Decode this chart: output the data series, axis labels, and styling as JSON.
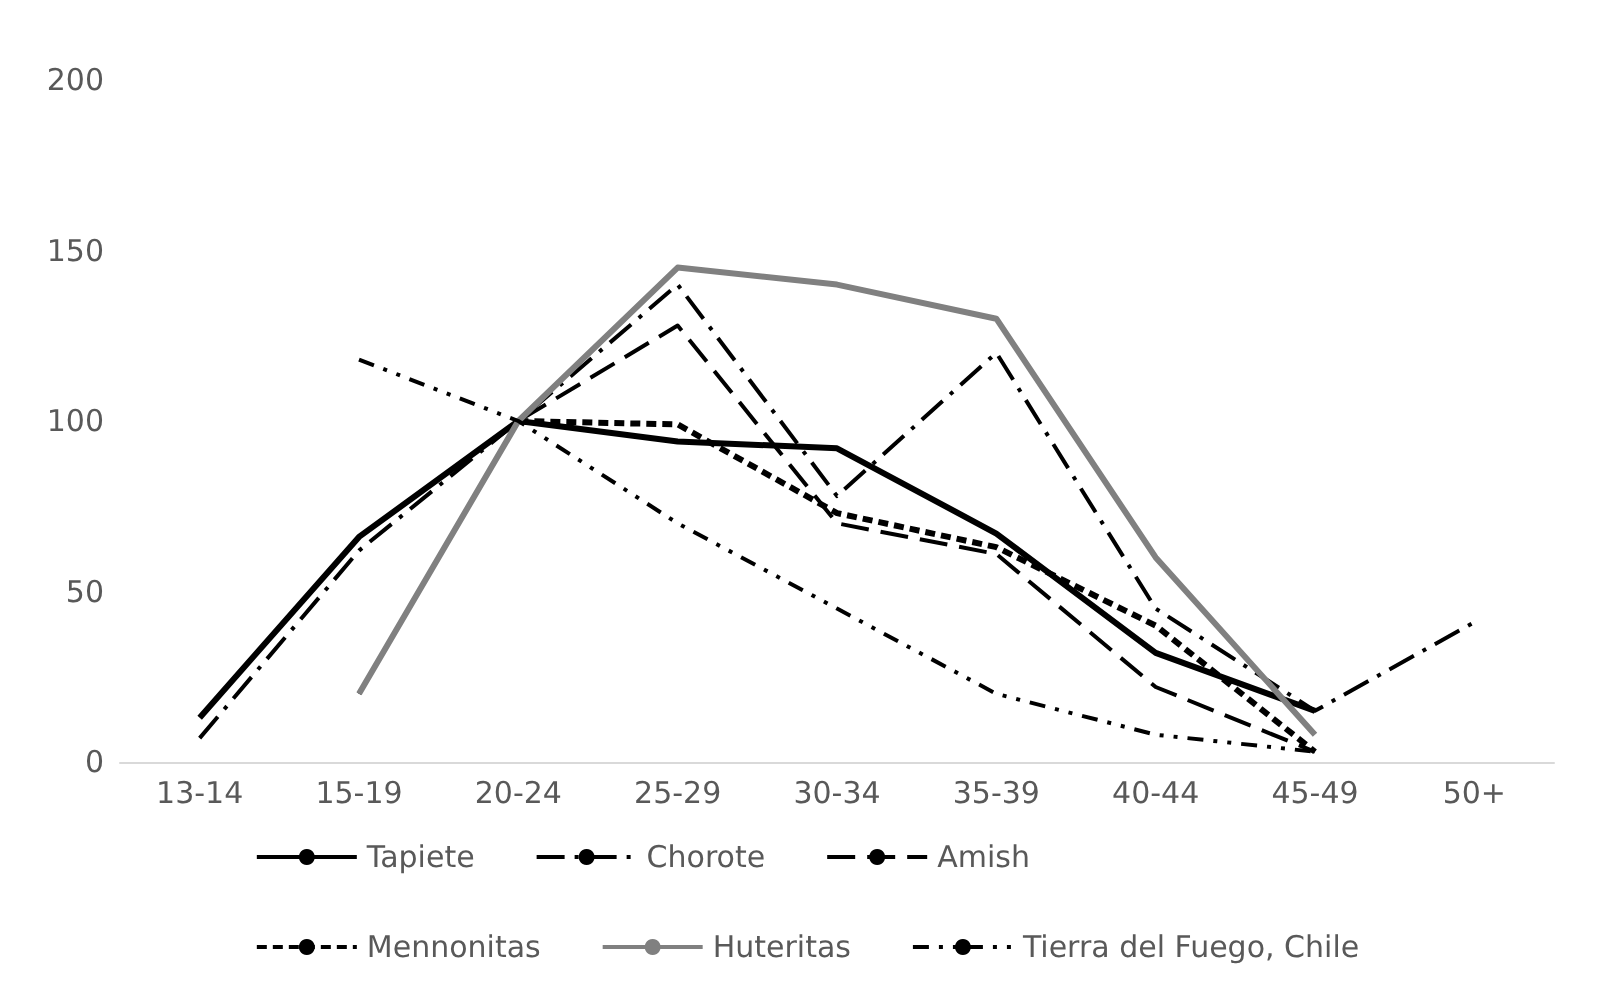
{
  "chart_data": {
    "type": "line",
    "categories": [
      "13-14",
      "15-19",
      "20-24",
      "25-29",
      "30-34",
      "35-39",
      "40-44",
      "45-49",
      "50+"
    ],
    "series": [
      {
        "name": "Tapiete",
        "color": "#000000",
        "line_style": "solid",
        "values": [
          13,
          66,
          100,
          94,
          92,
          67,
          32,
          15,
          null
        ]
      },
      {
        "name": "Chorote",
        "color": "#000000",
        "line_style": "dashdot",
        "values": [
          7,
          62,
          100,
          140,
          78,
          120,
          45,
          15,
          41
        ]
      },
      {
        "name": "Amish",
        "color": "#000000",
        "line_style": "dashed",
        "values": [
          null,
          20,
          100,
          128,
          70,
          61,
          22,
          3,
          null
        ]
      },
      {
        "name": "Mennonitas",
        "color": "#000000",
        "line_style": "dotted",
        "values": [
          null,
          null,
          100,
          99,
          73,
          63,
          40,
          3,
          null
        ]
      },
      {
        "name": "Huteritas",
        "color": "#808080",
        "line_style": "solid",
        "values": [
          null,
          20,
          100,
          145,
          140,
          130,
          60,
          8,
          null
        ]
      },
      {
        "name": "Tierra del Fuego, Chile",
        "color": "#000000",
        "line_style": "dashdotdot",
        "values": [
          null,
          118,
          100,
          70,
          45,
          20,
          8,
          3,
          null
        ]
      }
    ],
    "ylim": [
      0,
      200
    ],
    "yticks": [
      0,
      50,
      100,
      150,
      200
    ],
    "grid": false,
    "legend": "bottom",
    "marker": "none"
  }
}
